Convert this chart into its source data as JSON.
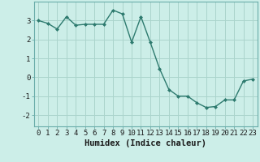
{
  "x": [
    0,
    1,
    2,
    3,
    4,
    5,
    6,
    7,
    8,
    9,
    10,
    11,
    12,
    13,
    14,
    15,
    16,
    17,
    18,
    19,
    20,
    21,
    22,
    23
  ],
  "y": [
    3.0,
    2.85,
    2.55,
    3.2,
    2.75,
    2.8,
    2.8,
    2.8,
    3.55,
    3.35,
    1.85,
    3.2,
    1.85,
    0.45,
    -0.65,
    -1.0,
    -1.0,
    -1.35,
    -1.6,
    -1.55,
    -1.2,
    -1.2,
    -0.2,
    -0.1
  ],
  "line_color": "#2d7a6e",
  "marker": "D",
  "markersize": 2.0,
  "linewidth": 1.0,
  "bg_color": "#cceee8",
  "grid_color": "#aad4cc",
  "xlabel": "Humidex (Indice chaleur)",
  "xlabel_fontsize": 7.5,
  "tick_fontsize": 6.5,
  "xlim": [
    -0.5,
    23.5
  ],
  "ylim": [
    -2.6,
    4.0
  ],
  "yticks": [
    -2,
    -1,
    0,
    1,
    2,
    3
  ],
  "xticks": [
    0,
    1,
    2,
    3,
    4,
    5,
    6,
    7,
    8,
    9,
    10,
    11,
    12,
    13,
    14,
    15,
    16,
    17,
    18,
    19,
    20,
    21,
    22,
    23
  ]
}
